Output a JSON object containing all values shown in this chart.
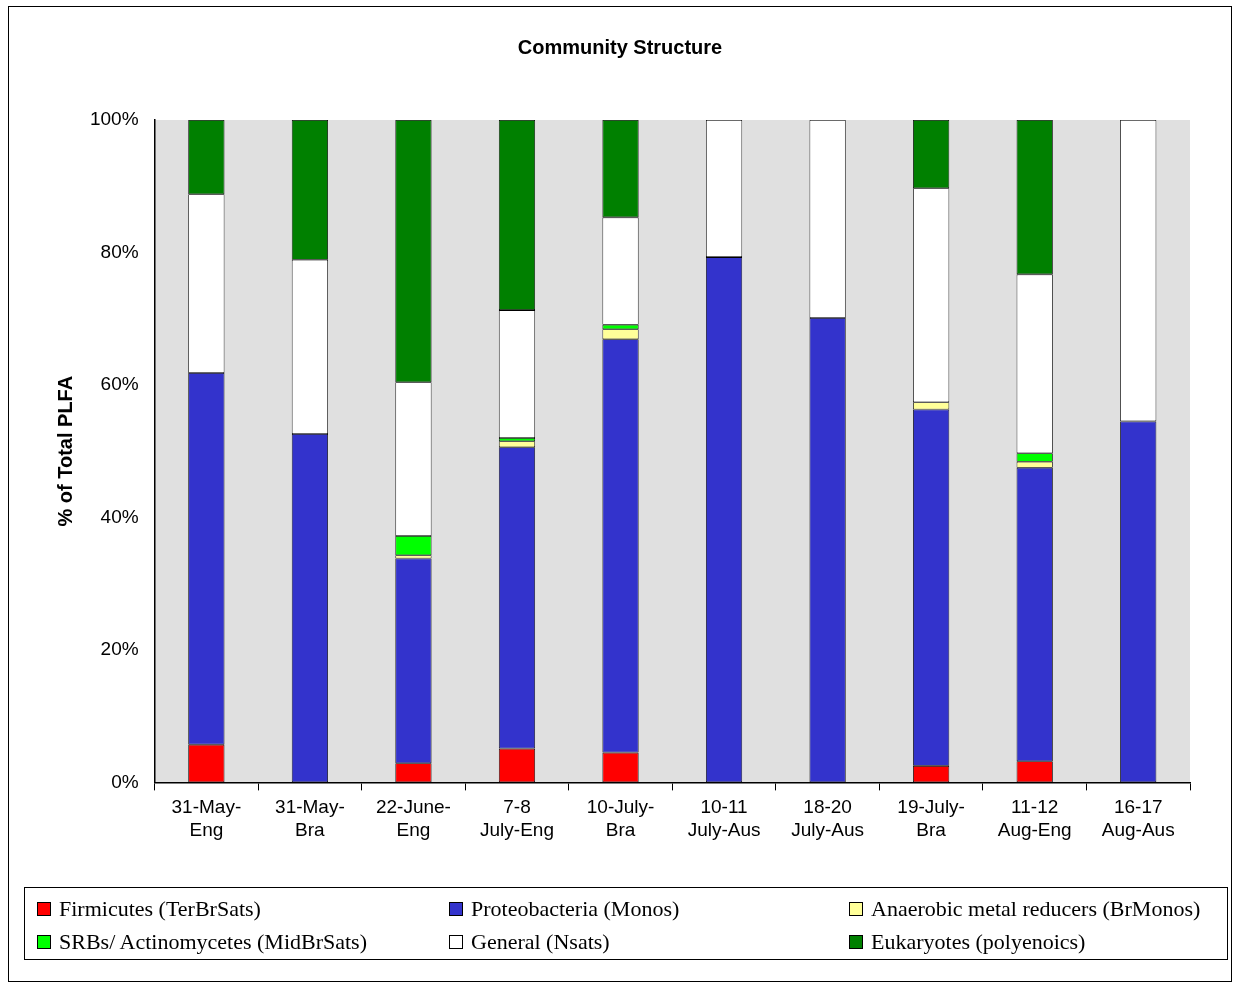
{
  "chart_data": {
    "type": "bar",
    "title": "Community Structure",
    "ylabel": "% of Total PLFA",
    "stacked": true,
    "categories": [
      "31-May-Eng",
      "31-May-Bra",
      "22-June-Eng",
      "7-8 July-Eng",
      "10-July-Bra",
      "10-11 July-Aus",
      "18-20 July-Aus",
      "19-July-Bra",
      "11-12 Aug-Eng",
      "16-17 Aug-Aus"
    ],
    "series": [
      {
        "name": "Firmicutes (TerBrSats)",
        "color": "#ff0000",
        "values": [
          5.7,
          0,
          2.9,
          5.1,
          4.5,
          0,
          0,
          2.5,
          3.2,
          0
        ]
      },
      {
        "name": "Proteobacteria (Monos)",
        "color": "#3333cc",
        "values": [
          56.1,
          52.6,
          30.9,
          45.5,
          62.4,
          79.3,
          70.1,
          53.8,
          44.3,
          54.5
        ]
      },
      {
        "name": "Anaerobic metal reducers (BrMonos)",
        "color": "#ffff99",
        "values": [
          0,
          0,
          0.5,
          0.9,
          1.5,
          0,
          0,
          1.1,
          0.9,
          0
        ]
      },
      {
        "name": "SRBs/ Actinomycetes (MidBrSats)",
        "color": "#00ff00",
        "values": [
          0,
          0,
          2.9,
          0.5,
          0.7,
          0,
          0,
          0,
          1.3,
          0
        ]
      },
      {
        "name": "General (Nsats)",
        "color": "#ffffff",
        "values": [
          27.0,
          26.3,
          23.2,
          19.3,
          16.2,
          20.7,
          29.9,
          32.3,
          27.0,
          45.5
        ]
      },
      {
        "name": "Eukaryotes (polyenoics)",
        "color": "#008000",
        "values": [
          11.2,
          21.1,
          39.6,
          28.7,
          14.7,
          0,
          0,
          10.3,
          23.3,
          0
        ]
      }
    ],
    "ylim": [
      0,
      100
    ],
    "yticks": [
      {
        "value": 0,
        "label": "0%"
      },
      {
        "value": 20,
        "label": "20%"
      },
      {
        "value": 40,
        "label": "40%"
      },
      {
        "value": 60,
        "label": "60%"
      },
      {
        "value": 80,
        "label": "80%"
      },
      {
        "value": 100,
        "label": "100%"
      }
    ],
    "grid": false,
    "legend": "bottom"
  }
}
